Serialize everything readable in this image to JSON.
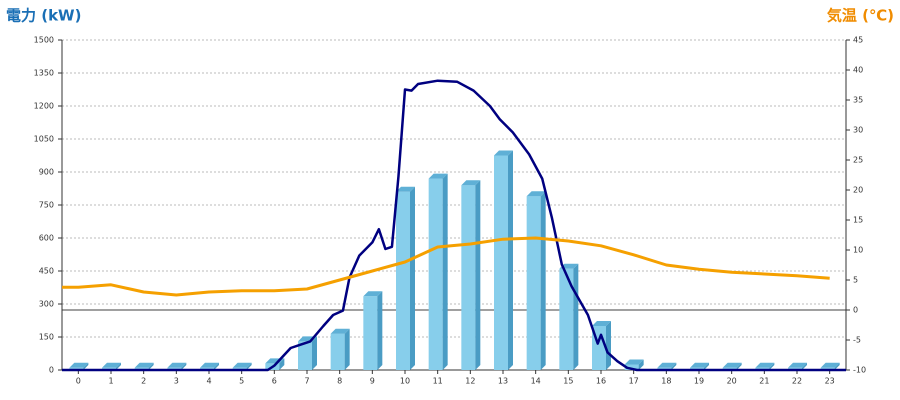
{
  "chart_data": {
    "type": "bar",
    "title": "電力 (kW)",
    "y2_title": "気温 (℃)",
    "categories": [
      0,
      1,
      2,
      3,
      4,
      5,
      6,
      7,
      8,
      9,
      10,
      11,
      12,
      13,
      14,
      15,
      16,
      17,
      18,
      19,
      20,
      21,
      22,
      23
    ],
    "ylim": [
      0,
      1500
    ],
    "yticks": [
      0,
      150,
      300,
      450,
      600,
      750,
      900,
      1050,
      1200,
      1350,
      1500
    ],
    "y2lim": [
      -10,
      45
    ],
    "y2ticks": [
      -10,
      -5,
      0,
      5,
      10,
      15,
      20,
      25,
      30,
      35,
      40,
      45
    ],
    "grid": true,
    "series": [
      {
        "type": "bar",
        "color": "#87ceeb",
        "values": [
          10,
          10,
          10,
          10,
          10,
          10,
          30,
          130,
          165,
          335,
          810,
          870,
          840,
          975,
          790,
          460,
          200,
          25,
          10,
          10,
          10,
          10,
          10,
          10
        ]
      },
      {
        "type": "line",
        "color": "#000080",
        "x": [
          -0.5,
          5.8,
          6.0,
          6.5,
          6.8,
          7.1,
          7.5,
          7.8,
          8.1,
          8.3,
          8.6,
          9.0,
          9.2,
          9.4,
          9.6,
          9.8,
          10.0,
          10.2,
          10.4,
          11.0,
          11.6,
          12.1,
          12.6,
          12.9,
          13.3,
          13.8,
          14.2,
          14.5,
          14.8,
          15.1,
          15.6,
          15.9,
          16.0,
          16.2,
          16.5,
          16.8,
          17.1,
          23.5
        ],
        "values": [
          0,
          0,
          20,
          100,
          115,
          130,
          200,
          250,
          270,
          420,
          520,
          580,
          640,
          550,
          560,
          880,
          1275,
          1270,
          1300,
          1315,
          1310,
          1270,
          1200,
          1140,
          1080,
          980,
          870,
          690,
          480,
          380,
          250,
          120,
          160,
          80,
          40,
          10,
          0,
          0
        ]
      },
      {
        "type": "line",
        "axis": "y2",
        "color": "#f5a000",
        "x": [
          -0.5,
          0,
          1,
          2,
          3,
          4,
          5,
          6,
          7,
          8,
          9,
          10,
          11,
          12,
          13,
          14,
          15,
          16,
          17,
          18,
          19,
          20,
          21,
          22,
          23
        ],
        "values": [
          3.8,
          3.8,
          4.2,
          3.0,
          2.5,
          3.0,
          3.2,
          3.2,
          3.5,
          5.0,
          6.5,
          8.0,
          10.5,
          11.0,
          11.8,
          12.0,
          11.5,
          10.7,
          9.2,
          7.5,
          6.8,
          6.3,
          6.0,
          5.7,
          5.3
        ]
      }
    ]
  }
}
